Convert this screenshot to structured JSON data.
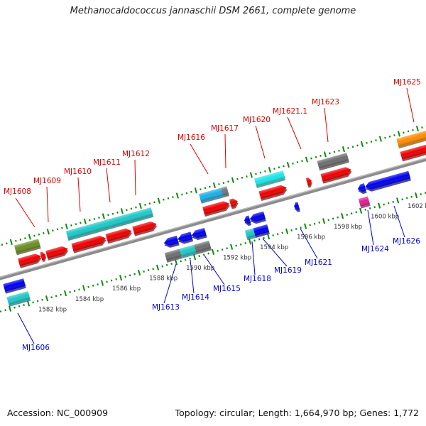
{
  "title": "Methanocaldococcus jannaschii DSM 2661, complete genome",
  "footer": {
    "accession": "Accession: NC_000909",
    "summary": "Topology: circular; Length: 1,664,970 bp; Genes: 1,772"
  },
  "colors": {
    "backbone": "#8c8c8c",
    "scale": "#118811",
    "forward_label": "#e00000",
    "reverse_label": "#0000dd"
  },
  "scale_ticks_kbp": [
    {
      "kbp": 1582,
      "label": "1582 kbp"
    },
    {
      "kbp": 1584,
      "label": "1584 kbp"
    },
    {
      "kbp": 1586,
      "label": "1586 kbp"
    },
    {
      "kbp": 1588,
      "label": "1588 kbp"
    },
    {
      "kbp": 1590,
      "label": "1590 kbp"
    },
    {
      "kbp": 1592,
      "label": "1592 kbp"
    },
    {
      "kbp": 1594,
      "label": "1594 kbp"
    },
    {
      "kbp": 1596,
      "label": "1596 kbp"
    },
    {
      "kbp": 1598,
      "label": "1598 kbp"
    },
    {
      "kbp": 1600,
      "label": "1600 kbp"
    },
    {
      "kbp": 1602,
      "label": "1602 kbp"
    }
  ],
  "features": [
    {
      "row": "fwd-cds",
      "start": 1581.1,
      "end": 1582.3,
      "color": "#ee0000",
      "shape": "arrow-right"
    },
    {
      "row": "fwd-cds",
      "start": 1582.3,
      "end": 1582.55,
      "color": "#ee0000",
      "shape": "arrow-right"
    },
    {
      "row": "fwd-cds",
      "start": 1582.6,
      "end": 1583.75,
      "color": "#ee0000",
      "shape": "arrow-right"
    },
    {
      "row": "fwd-cds",
      "start": 1584.0,
      "end": 1585.8,
      "color": "#ee0000",
      "shape": "arrow-right"
    },
    {
      "row": "fwd-cds",
      "start": 1585.85,
      "end": 1587.2,
      "color": "#ee0000",
      "shape": "arrow-right"
    },
    {
      "row": "fwd-cds",
      "start": 1587.3,
      "end": 1588.55,
      "color": "#ee0000",
      "shape": "arrow-right"
    },
    {
      "row": "fwd-cds",
      "start": 1591.1,
      "end": 1592.5,
      "color": "#ee0000",
      "shape": "arrow-right"
    },
    {
      "row": "fwd-cds",
      "start": 1592.55,
      "end": 1592.95,
      "color": "#ee0000",
      "shape": "arrow-right"
    },
    {
      "row": "fwd-cds",
      "start": 1594.15,
      "end": 1595.6,
      "color": "#ee0000",
      "shape": "arrow-right"
    },
    {
      "row": "fwd-cds",
      "start": 1596.7,
      "end": 1596.95,
      "color": "#ee0000",
      "shape": "arrow-right"
    },
    {
      "row": "fwd-cds",
      "start": 1597.5,
      "end": 1599.1,
      "color": "#ee0000",
      "shape": "arrow-right"
    },
    {
      "row": "fwd-cds",
      "start": 1601.8,
      "end": 1604.0,
      "color": "#ee0000",
      "shape": "arrow-right"
    },
    {
      "row": "fwd-gene",
      "start": 1581.1,
      "end": 1582.4,
      "color": "#6b8e23",
      "shape": "box"
    },
    {
      "row": "fwd-gene",
      "start": 1583.9,
      "end": 1585.8,
      "color": "#1ec8c8",
      "shape": "box"
    },
    {
      "row": "fwd-gene",
      "start": 1585.8,
      "end": 1587.3,
      "color": "#1ec8c8",
      "shape": "box"
    },
    {
      "row": "fwd-gene",
      "start": 1587.3,
      "end": 1588.5,
      "color": "#1ec8c8",
      "shape": "box"
    },
    {
      "row": "fwd-gene",
      "start": 1591.1,
      "end": 1592.3,
      "color": "#1eaee6",
      "shape": "box"
    },
    {
      "row": "fwd-gene",
      "start": 1592.3,
      "end": 1592.6,
      "color": "#777777",
      "shape": "box"
    },
    {
      "row": "fwd-gene",
      "start": 1594.1,
      "end": 1595.65,
      "color": "#1ee6e6",
      "shape": "box"
    },
    {
      "row": "fwd-gene",
      "start": 1597.5,
      "end": 1599.1,
      "color": "#6e6e6e",
      "shape": "box"
    },
    {
      "row": "fwd-gene",
      "start": 1601.8,
      "end": 1604.0,
      "color": "#ff8c00",
      "shape": "box"
    },
    {
      "row": "rev-cds",
      "start": 1580.0,
      "end": 1581.1,
      "color": "#0000ee",
      "shape": "box"
    },
    {
      "row": "rev-cds",
      "start": 1588.65,
      "end": 1589.4,
      "color": "#0000ee",
      "shape": "arrow-left"
    },
    {
      "row": "rev-cds",
      "start": 1589.4,
      "end": 1590.15,
      "color": "#0000ee",
      "shape": "arrow-left"
    },
    {
      "row": "rev-cds",
      "start": 1590.15,
      "end": 1590.9,
      "color": "#0000ee",
      "shape": "arrow-left"
    },
    {
      "row": "rev-cds",
      "start": 1593.0,
      "end": 1593.3,
      "color": "#0000ee",
      "shape": "arrow-left"
    },
    {
      "row": "rev-cds",
      "start": 1593.3,
      "end": 1594.1,
      "color": "#0000ee",
      "shape": "arrow-left"
    },
    {
      "row": "rev-cds",
      "start": 1595.7,
      "end": 1595.95,
      "color": "#0000ee",
      "shape": "arrow-left"
    },
    {
      "row": "rev-cds",
      "start": 1599.15,
      "end": 1599.55,
      "color": "#0000ee",
      "shape": "arrow-left"
    },
    {
      "row": "rev-cds",
      "start": 1599.55,
      "end": 1601.95,
      "color": "#0000ee",
      "shape": "arrow-left"
    },
    {
      "row": "rev-gene",
      "start": 1580.0,
      "end": 1581.15,
      "color": "#1ec8c8",
      "shape": "box"
    },
    {
      "row": "rev-gene",
      "start": 1588.55,
      "end": 1589.35,
      "color": "#6e6e6e",
      "shape": "box"
    },
    {
      "row": "rev-gene",
      "start": 1589.35,
      "end": 1590.15,
      "color": "#1ec8c8",
      "shape": "box"
    },
    {
      "row": "rev-gene",
      "start": 1590.15,
      "end": 1590.95,
      "color": "#6e6e6e",
      "shape": "box"
    },
    {
      "row": "rev-gene",
      "start": 1592.9,
      "end": 1593.35,
      "color": "#1ec8c8",
      "shape": "box"
    },
    {
      "row": "rev-gene",
      "start": 1593.35,
      "end": 1594.1,
      "color": "#0000ee",
      "shape": "box"
    },
    {
      "row": "rev-gene",
      "start": 1599.05,
      "end": 1599.55,
      "color": "#e61e96",
      "shape": "box"
    }
  ],
  "labels": [
    {
      "text": "MJ1608",
      "strand": "fwd"
    },
    {
      "text": "MJ1609",
      "strand": "fwd"
    },
    {
      "text": "MJ1610",
      "strand": "fwd"
    },
    {
      "text": "MJ1611",
      "strand": "fwd"
    },
    {
      "text": "MJ1612",
      "strand": "fwd"
    },
    {
      "text": "MJ1616",
      "strand": "fwd"
    },
    {
      "text": "MJ1617",
      "strand": "fwd"
    },
    {
      "text": "MJ1620",
      "strand": "fwd"
    },
    {
      "text": "MJ1621.1",
      "strand": "fwd"
    },
    {
      "text": "MJ1623",
      "strand": "fwd"
    },
    {
      "text": "MJ1625",
      "strand": "fwd"
    },
    {
      "text": "MJ1606",
      "strand": "rev"
    },
    {
      "text": "MJ1613",
      "strand": "rev"
    },
    {
      "text": "MJ1614",
      "strand": "rev"
    },
    {
      "text": "MJ1615",
      "strand": "rev"
    },
    {
      "text": "MJ1618",
      "strand": "rev"
    },
    {
      "text": "MJ1619",
      "strand": "rev"
    },
    {
      "text": "MJ1621",
      "strand": "rev"
    },
    {
      "text": "MJ1624",
      "strand": "rev"
    },
    {
      "text": "MJ1626",
      "strand": "rev"
    }
  ]
}
